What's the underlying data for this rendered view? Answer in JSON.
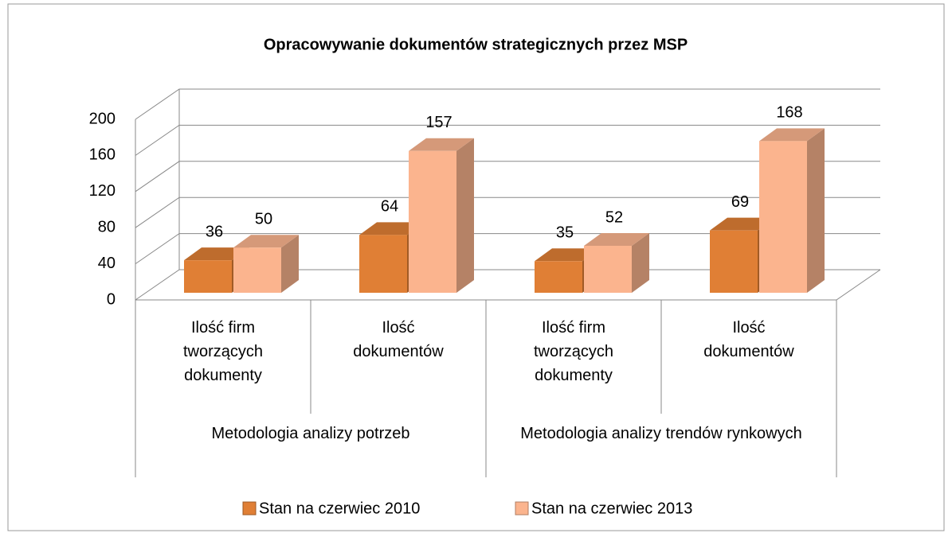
{
  "chart_data": {
    "type": "bar3d",
    "title": "Opracowywanie dokumentów strategicznych przez MSP",
    "categories": [
      "Ilość firm tworzących dokumenty",
      "Ilość dokumentów",
      "Ilość firm tworzących dokumenty",
      "Ilość dokumentów"
    ],
    "groups": [
      "Metodologia analizy potrzeb",
      "Metodologia analizy trendów rynkowych"
    ],
    "series": [
      {
        "name": "Stan na czerwiec 2010",
        "color": "#e07f35",
        "values": [
          36,
          64,
          35,
          69
        ]
      },
      {
        "name": "Stan na czerwiec 2013",
        "color": "#fbb48e",
        "values": [
          50,
          157,
          52,
          168
        ]
      }
    ],
    "ylim": [
      0,
      200
    ],
    "yticks": [
      0,
      40,
      80,
      120,
      160,
      200
    ],
    "grid": true,
    "legend": "bottom"
  }
}
